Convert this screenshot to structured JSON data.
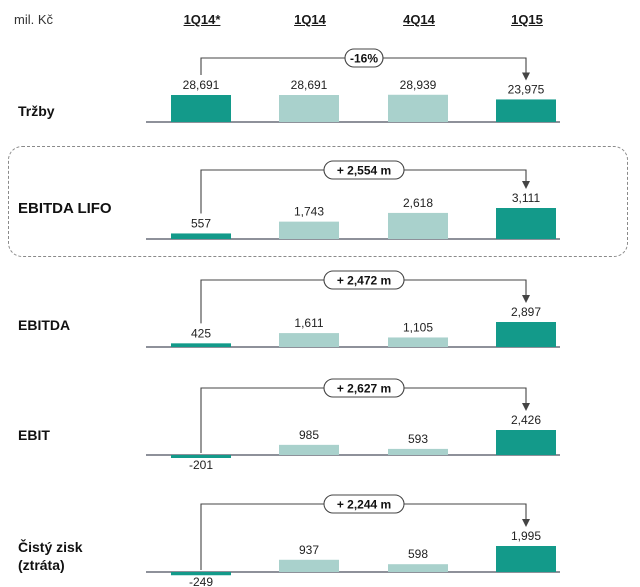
{
  "unit_label": "mil. Kč",
  "columns": [
    "1Q14*",
    "1Q14",
    "4Q14",
    "1Q15"
  ],
  "colors": {
    "dark": "#139a8a",
    "light": "#a9d1cc",
    "axis": "#4a4f5e",
    "arrow": "#444"
  },
  "chart_data": [
    {
      "type": "bar",
      "label": "Tržby",
      "categories": [
        "1Q14*",
        "1Q14",
        "4Q14",
        "1Q15"
      ],
      "values": [
        28691,
        28691,
        28939,
        23975
      ],
      "value_labels": [
        "28,691",
        "28,691",
        "28,939",
        "23,975"
      ],
      "change_label": "-16%",
      "ylim": [
        0,
        40000
      ]
    },
    {
      "type": "bar",
      "label": "EBITDA LIFO",
      "categories": [
        "1Q14*",
        "1Q14",
        "4Q14",
        "1Q15"
      ],
      "values": [
        557,
        1743,
        2618,
        3111
      ],
      "value_labels": [
        "557",
        "1,743",
        "2,618",
        "3,111"
      ],
      "change_label": "+ 2,554 m",
      "ylim": [
        0,
        3300
      ]
    },
    {
      "type": "bar",
      "label": "EBITDA",
      "categories": [
        "1Q14*",
        "1Q14",
        "4Q14",
        "1Q15"
      ],
      "values": [
        425,
        1611,
        1105,
        2897
      ],
      "value_labels": [
        "425",
        "1,611",
        "1,105",
        "2,897"
      ],
      "change_label": "+ 2,472 m",
      "ylim": [
        0,
        3100
      ]
    },
    {
      "type": "bar",
      "label": "EBIT",
      "categories": [
        "1Q14*",
        "1Q14",
        "4Q14",
        "1Q15"
      ],
      "values": [
        -201,
        985,
        593,
        2426
      ],
      "value_labels": [
        "-201",
        "985",
        "593",
        "2,426"
      ],
      "change_label": "+ 2,627 m",
      "ylim": [
        -500,
        3000
      ]
    },
    {
      "type": "bar",
      "label": "Čistý zisk (ztráta)",
      "categories": [
        "1Q14*",
        "1Q14",
        "4Q14",
        "1Q15"
      ],
      "values": [
        -249,
        937,
        598,
        1995
      ],
      "value_labels": [
        "-249",
        "937",
        "598",
        "1,995"
      ],
      "change_label": "+ 2,244 m",
      "ylim": [
        -600,
        2500
      ]
    }
  ]
}
